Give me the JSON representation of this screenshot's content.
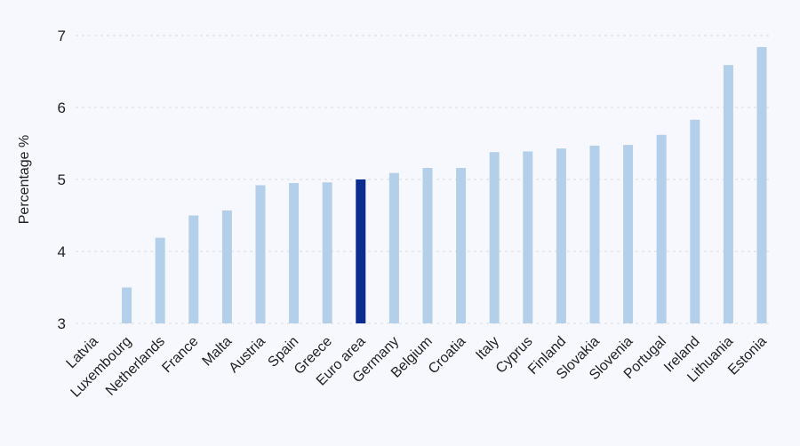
{
  "chart_data": {
    "type": "bar",
    "title": "",
    "xlabel": "",
    "ylabel": "Percentage %",
    "ylim": [
      3,
      7
    ],
    "yticks": [
      3,
      4,
      5,
      6,
      7
    ],
    "grid": true,
    "legend": "none",
    "categories": [
      "Latvia",
      "Luxembourg",
      "Netherlands",
      "France",
      "Malta",
      "Austria",
      "Spain",
      "Greece",
      "Euro area",
      "Germany",
      "Belgium",
      "Croatia",
      "Italy",
      "Cyprus",
      "Finland",
      "Slovakia",
      "Slovenia",
      "Portugal",
      "Ireland",
      "Lithuania",
      "Estonia"
    ],
    "values": [
      null,
      3.5,
      4.19,
      4.5,
      4.57,
      4.92,
      4.95,
      4.96,
      5.0,
      5.09,
      5.16,
      5.16,
      5.38,
      5.39,
      5.43,
      5.47,
      5.48,
      5.62,
      5.83,
      6.59,
      6.84
    ],
    "highlight": "Euro area",
    "colors": {
      "bar": "#b3cfe9",
      "highlight": "#0c2d8f",
      "background": "#f7f8fd"
    }
  }
}
